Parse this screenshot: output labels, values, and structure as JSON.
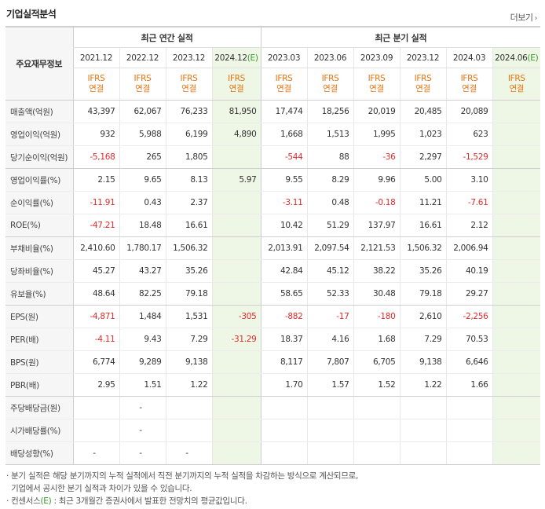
{
  "header": {
    "title": "기업실적분석",
    "more_label": "더보기"
  },
  "table": {
    "row_header_label": "주요재무정보",
    "groups": {
      "annual": "최근 연간 실적",
      "quarter": "최근 분기 실적"
    },
    "periods": [
      "2021.12",
      "2022.12",
      "2023.12",
      "2024.12",
      "2023.03",
      "2023.06",
      "2023.09",
      "2023.12",
      "2024.03",
      "2024.06"
    ],
    "estimate_marker": "(E)",
    "ifrs_label": "IFRS",
    "ifrs_sub": "연결",
    "rows": [
      {
        "label": "매출액(억원)",
        "values": [
          "43,397",
          "62,067",
          "76,233",
          "81,950",
          "17,474",
          "18,256",
          "20,019",
          "20,485",
          "20,089",
          ""
        ]
      },
      {
        "label": "영업이익(억원)",
        "values": [
          "932",
          "5,988",
          "6,199",
          "4,890",
          "1,668",
          "1,513",
          "1,995",
          "1,023",
          "623",
          ""
        ]
      },
      {
        "label": "당기순이익(억원)",
        "values": [
          "-5,168",
          "265",
          "1,805",
          "",
          "-544",
          "88",
          "-36",
          "2,297",
          "-1,529",
          ""
        ]
      },
      {
        "label": "영업이익률(%)",
        "values": [
          "2.15",
          "9.65",
          "8.13",
          "5.97",
          "9.55",
          "8.29",
          "9.96",
          "5.00",
          "3.10",
          ""
        ]
      },
      {
        "label": "순이익률(%)",
        "values": [
          "-11.91",
          "0.43",
          "2.37",
          "",
          "-3.11",
          "0.48",
          "-0.18",
          "11.21",
          "-7.61",
          ""
        ]
      },
      {
        "label": "ROE(%)",
        "values": [
          "-47.21",
          "18.48",
          "16.61",
          "",
          "10.42",
          "51.29",
          "137.97",
          "16.61",
          "2.12",
          ""
        ]
      },
      {
        "label": "부채비율(%)",
        "values": [
          "2,410.60",
          "1,780.17",
          "1,506.32",
          "",
          "2,013.91",
          "2,097.54",
          "2,121.53",
          "1,506.32",
          "2,006.94",
          ""
        ]
      },
      {
        "label": "당좌비율(%)",
        "values": [
          "45.27",
          "43.27",
          "35.26",
          "",
          "42.84",
          "45.12",
          "38.22",
          "35.26",
          "40.19",
          ""
        ]
      },
      {
        "label": "유보율(%)",
        "values": [
          "48.64",
          "82.25",
          "79.18",
          "",
          "58.65",
          "52.33",
          "30.48",
          "79.18",
          "29.27",
          ""
        ]
      },
      {
        "label": "EPS(원)",
        "values": [
          "-4,871",
          "1,484",
          "1,531",
          "-305",
          "-882",
          "-17",
          "-180",
          "2,610",
          "-2,256",
          ""
        ]
      },
      {
        "label": "PER(배)",
        "values": [
          "-4.11",
          "9.43",
          "7.29",
          "-31.29",
          "18.37",
          "4.16",
          "1.68",
          "7.29",
          "70.53",
          ""
        ]
      },
      {
        "label": "BPS(원)",
        "values": [
          "6,774",
          "9,289",
          "9,138",
          "",
          "8,117",
          "7,807",
          "6,705",
          "9,138",
          "6,646",
          ""
        ]
      },
      {
        "label": "PBR(배)",
        "values": [
          "2.95",
          "1.51",
          "1.22",
          "",
          "1.70",
          "1.57",
          "1.52",
          "1.22",
          "1.66",
          ""
        ]
      },
      {
        "label": "주당배당금(원)",
        "values": [
          "",
          "-",
          "",
          "",
          "",
          "",
          "",
          "",
          "",
          ""
        ]
      },
      {
        "label": "시가배당률(%)",
        "values": [
          "",
          "-",
          "",
          "",
          "",
          "",
          "",
          "",
          "",
          ""
        ]
      },
      {
        "label": "배당성향(%)",
        "values": [
          "-",
          "-",
          "-",
          "",
          "",
          "",
          "",
          "",
          "",
          ""
        ]
      }
    ]
  },
  "footnotes": {
    "line1": "· 분기 실적은 해당 분기까지의 누적 실적에서 직전 분기까지의 누적 실적을 차감하는 방식으로 계산되므로,",
    "line2": "  기업에서 공시한 분기 실적과 차이가 있을 수 있습니다.",
    "line3_prefix": "· 컨센서스",
    "line3_mark": "(E)",
    "line3_suffix": " : 최근 3개월간 증권사에서 발표한 전망치의 평균값입니다."
  },
  "colors": {
    "negative": "#e02a2a",
    "ifrs": "#e8730e",
    "estimate_bg": "#eef7e6",
    "estimate_mark": "#3a9a2e"
  }
}
